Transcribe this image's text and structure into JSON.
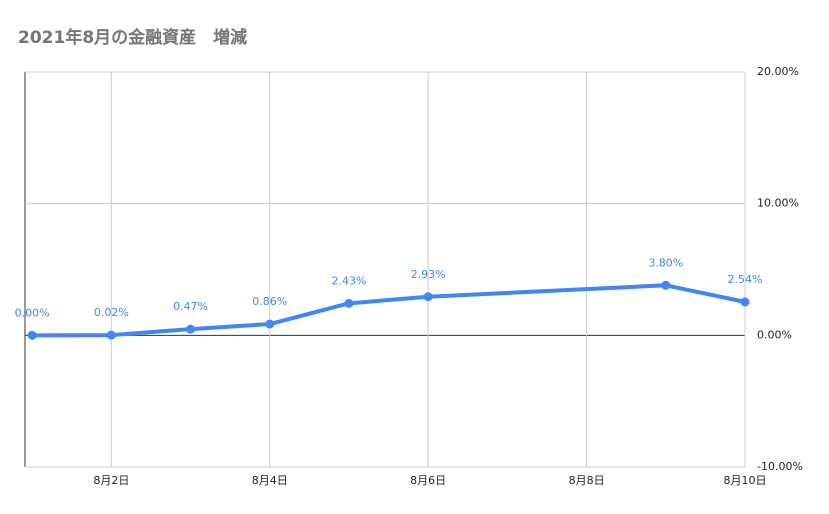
{
  "chart_data": {
    "type": "line",
    "title": "2021年8月の金融資産　増減",
    "x": [
      1,
      2,
      3,
      4,
      5,
      6,
      9,
      10
    ],
    "series": [
      {
        "name": "増減",
        "color": "#4285f4",
        "values": [
          0,
          0.02,
          0.47,
          0.86,
          2.43,
          2.93,
          3.8,
          2.54
        ],
        "value_labels": [
          "0.00%",
          "0.02%",
          "0.47%",
          "0.86%",
          "2.43%",
          "2.93%",
          "3.80%",
          "2.54%"
        ]
      }
    ],
    "xlim": [
      0.91,
      10
    ],
    "xticks": [
      {
        "value": 2,
        "label": "8月2日"
      },
      {
        "value": 4,
        "label": "8月4日"
      },
      {
        "value": 6,
        "label": "8月6日"
      },
      {
        "value": 8,
        "label": "8月8日"
      },
      {
        "value": 10,
        "label": "8月10日"
      }
    ],
    "ylim": [
      -10,
      20
    ],
    "yticks": [
      {
        "value": -10,
        "label": "-10.00%"
      },
      {
        "value": 0,
        "label": "0.00%"
      },
      {
        "value": 10,
        "label": "10.00%"
      },
      {
        "value": 20,
        "label": "20.00%"
      }
    ],
    "grid": true
  }
}
